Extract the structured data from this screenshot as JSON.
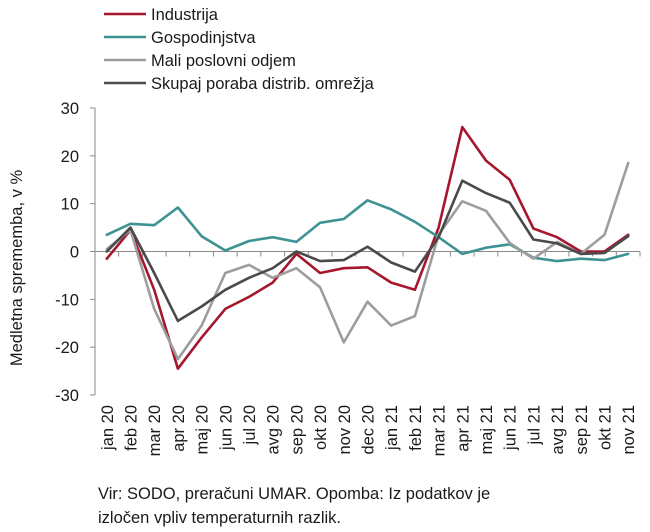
{
  "chart_data": {
    "type": "line",
    "title": "",
    "ylabel": "Medletna sprememba, v %",
    "xlabel": "",
    "ylim": [
      -30,
      30
    ],
    "yticks": [
      -30,
      -20,
      -10,
      0,
      10,
      20,
      30
    ],
    "grid": false,
    "legend_position": "top-left",
    "categories": [
      "jan 20",
      "feb 20",
      "mar 20",
      "apr 20",
      "maj 20",
      "jun 20",
      "jul 20",
      "avg 20",
      "sep 20",
      "okt 20",
      "nov 20",
      "dec 20",
      "jan 21",
      "feb 21",
      "mar 21",
      "apr 21",
      "maj 21",
      "jun 21",
      "jul 21",
      "avg 21",
      "sep 21",
      "okt 21",
      "nov 21"
    ],
    "series": [
      {
        "name": "Industrija",
        "color": "#a5172d",
        "values": [
          -1.5,
          4.5,
          -8,
          -24.5,
          -18,
          -12,
          -9.5,
          -6.5,
          -0.5,
          -4.5,
          -3.5,
          -3.3,
          -6.5,
          -8,
          5,
          26,
          19,
          15,
          4.8,
          3,
          0,
          0,
          3.5
        ]
      },
      {
        "name": "Gospodinjstva",
        "color": "#3d9393",
        "values": [
          3.5,
          5.8,
          5.5,
          9.2,
          3.2,
          0.2,
          2.2,
          3,
          2,
          6,
          6.8,
          10.7,
          8.8,
          6.2,
          3,
          -0.5,
          0.8,
          1.5,
          -1.3,
          -2,
          -1.5,
          -1.8,
          -0.5
        ]
      },
      {
        "name": "Mali poslovni odjem",
        "color": "#9d9d9d",
        "values": [
          0.5,
          4.5,
          -12,
          -22.5,
          -15.5,
          -4.5,
          -2.8,
          -5.5,
          -3.5,
          -7.5,
          -19,
          -10.5,
          -15.5,
          -13.5,
          3.5,
          10.5,
          8.5,
          1.8,
          -1.5,
          2,
          -0.5,
          3.5,
          18.5
        ]
      },
      {
        "name": "Skupaj poraba distrib. omrežja",
        "color": "#4a4a4a",
        "values": [
          0,
          5,
          -4.5,
          -14.5,
          -11.5,
          -8,
          -5.5,
          -3.5,
          0,
          -2,
          -1.8,
          1,
          -2.3,
          -4.2,
          3,
          14.8,
          12.2,
          10.2,
          2.5,
          1.7,
          -0.5,
          -0.3,
          3.2
        ]
      }
    ]
  },
  "note": {
    "line1": "Vir: SODO, preračuni UMAR. Opomba: Iz podatkov je",
    "line2": "izločen vpliv temperaturnih razlik."
  }
}
